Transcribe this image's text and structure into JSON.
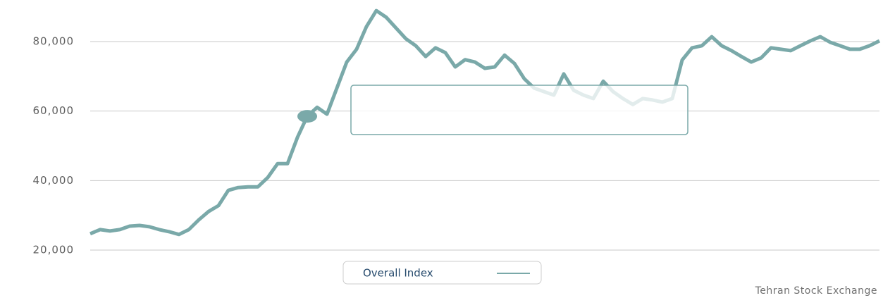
{
  "chart_data": {
    "type": "line",
    "series": [
      {
        "name": "Overall Index",
        "color": "#7aa9a9",
        "values": [
          24700,
          25900,
          25500,
          25900,
          26900,
          27100,
          26700,
          25900,
          25300,
          24500,
          25900,
          28700,
          31100,
          32800,
          37200,
          38000,
          38200,
          38200,
          40900,
          44900,
          44900,
          52400,
          58500,
          61100,
          59100,
          66600,
          74100,
          77800,
          84300,
          88900,
          87000,
          83900,
          80800,
          78800,
          75700,
          78200,
          76800,
          72700,
          74800,
          74100,
          72300,
          72700,
          76100,
          73700,
          69300,
          66600,
          65600,
          64600,
          70700,
          66000,
          64600,
          63600,
          68600,
          65600,
          63600,
          61900,
          63600,
          63200,
          62600,
          63600,
          74700,
          78200,
          78800,
          81400,
          78800,
          77400,
          75700,
          74100,
          75300,
          78200,
          77800,
          77400,
          78800,
          80200,
          81400,
          79800,
          78800,
          77800,
          77800,
          78800,
          80200
        ]
      }
    ],
    "ylim": [
      20000,
      90000
    ],
    "yticks": [
      {
        "value": 20000,
        "label": "20,000"
      },
      {
        "value": 40000,
        "label": "40,000"
      },
      {
        "value": 60000,
        "label": "60,000"
      },
      {
        "value": 80000,
        "label": "80,000"
      }
    ],
    "grid": true,
    "credits": "Tehran Stock Exchange"
  }
}
